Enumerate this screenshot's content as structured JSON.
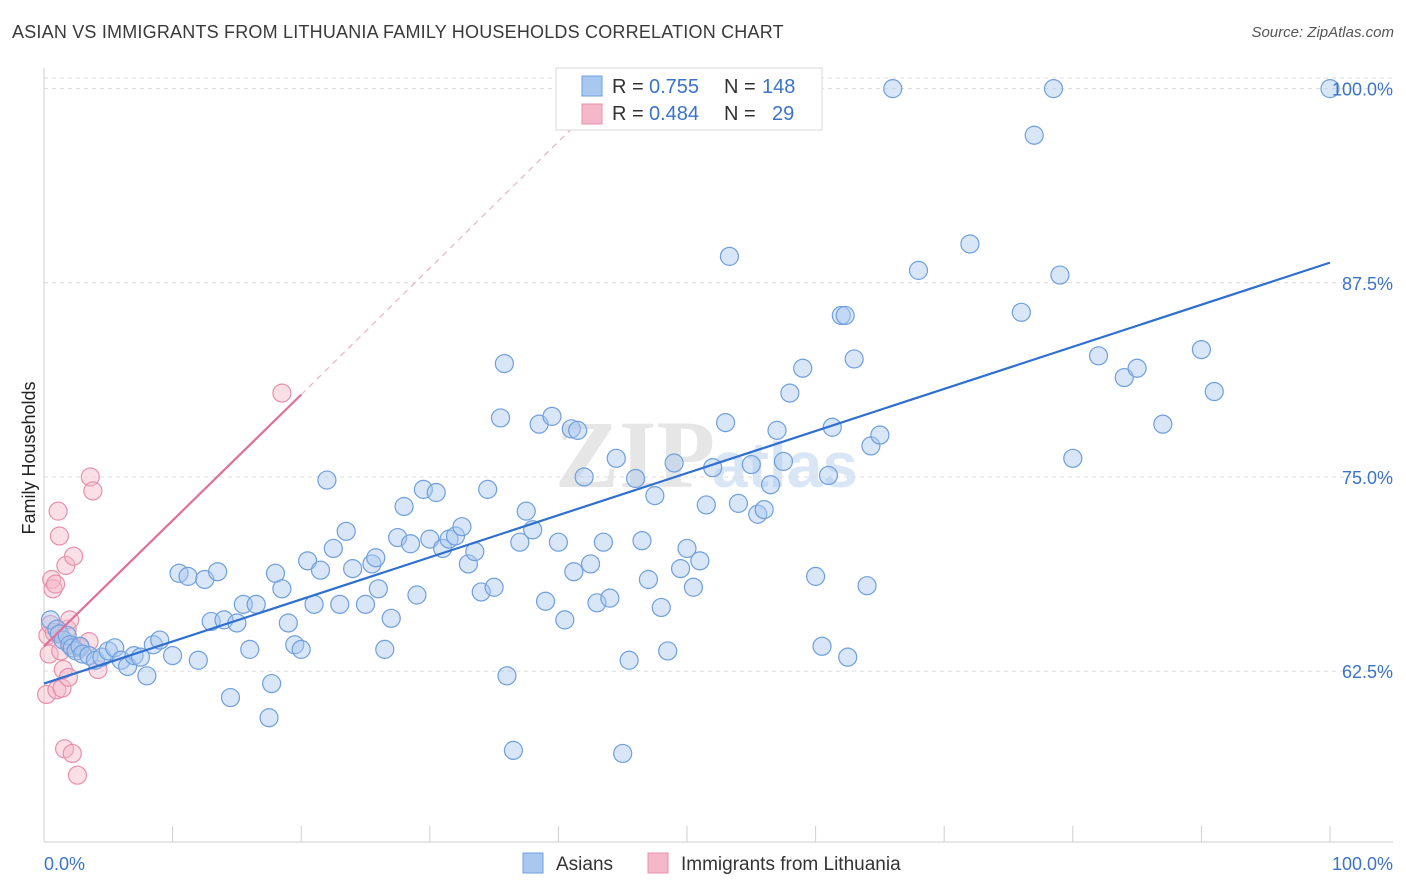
{
  "title": "ASIAN VS IMMIGRANTS FROM LITHUANIA FAMILY HOUSEHOLDS CORRELATION CHART",
  "source": "Source: ZipAtlas.com",
  "watermark": {
    "zip": "ZIP",
    "atlas": "atlas"
  },
  "legend": {
    "series1": {
      "r_label": "R =",
      "r_value": "0.755",
      "n_label": "N =",
      "n_value": "148"
    },
    "series2": {
      "r_label": "R =",
      "r_value": "0.484",
      "n_label": "N =",
      "n_value": "29"
    }
  },
  "bottom_legend": {
    "series1": "Asians",
    "series2": "Immigrants from Lithuania"
  },
  "colors": {
    "blue_fill": "#a9c8f0",
    "blue_stroke": "#6f9fdc",
    "blue_line": "#2f6fcf",
    "pink_fill": "#f5b8ca",
    "pink_stroke": "#e890ab",
    "pink_line": "#e07096",
    "tick_text": "#3b73c9",
    "grid": "#dcdcdc"
  },
  "chart_data": {
    "type": "scatter",
    "title": "ASIAN VS IMMIGRANTS FROM LITHUANIA FAMILY HOUSEHOLDS CORRELATION CHART",
    "xlabel": "",
    "ylabel": "Family Households",
    "xlim": [
      0,
      100
    ],
    "ylim": [
      51.5,
      101.2
    ],
    "x_tick_labels": [
      "0.0%",
      "100.0%"
    ],
    "y_ticks": [
      62.5,
      75.0,
      87.5,
      100.0
    ],
    "y_tick_labels": [
      "62.5%",
      "75.0%",
      "87.5%",
      "100.0%"
    ],
    "grid": true,
    "series": [
      {
        "name": "Asians",
        "R": 0.755,
        "N": 148,
        "trend": {
          "x": [
            0,
            100
          ],
          "y": [
            61.7,
            88.8
          ]
        },
        "points": [
          [
            0.5,
            65.8
          ],
          [
            1.0,
            65.2
          ],
          [
            1.2,
            64.9
          ],
          [
            1.5,
            64.5
          ],
          [
            1.8,
            64.8
          ],
          [
            2.0,
            64.2
          ],
          [
            2.2,
            64.0
          ],
          [
            2.5,
            63.8
          ],
          [
            2.8,
            64.1
          ],
          [
            3.0,
            63.6
          ],
          [
            3.5,
            63.5
          ],
          [
            4.0,
            63.2
          ],
          [
            4.5,
            63.4
          ],
          [
            5.0,
            63.8
          ],
          [
            5.5,
            64.0
          ],
          [
            6.0,
            63.2
          ],
          [
            6.5,
            62.8
          ],
          [
            7.0,
            63.5
          ],
          [
            7.5,
            63.4
          ],
          [
            8.0,
            62.2
          ],
          [
            8.5,
            64.2
          ],
          [
            9.0,
            64.5
          ],
          [
            10.0,
            63.5
          ],
          [
            10.5,
            68.8
          ],
          [
            11.2,
            68.6
          ],
          [
            12.0,
            63.2
          ],
          [
            12.5,
            68.4
          ],
          [
            13.0,
            65.7
          ],
          [
            13.5,
            68.9
          ],
          [
            14.0,
            65.8
          ],
          [
            14.5,
            60.8
          ],
          [
            15.0,
            65.6
          ],
          [
            15.5,
            66.8
          ],
          [
            16.0,
            63.9
          ],
          [
            16.5,
            66.8
          ],
          [
            17.5,
            59.5
          ],
          [
            17.7,
            61.7
          ],
          [
            18.0,
            68.8
          ],
          [
            18.5,
            67.8
          ],
          [
            19.0,
            65.6
          ],
          [
            19.5,
            64.2
          ],
          [
            20.0,
            63.9
          ],
          [
            20.5,
            69.6
          ],
          [
            21.0,
            66.8
          ],
          [
            21.5,
            69.0
          ],
          [
            22.0,
            74.8
          ],
          [
            22.5,
            70.4
          ],
          [
            23.0,
            66.8
          ],
          [
            23.5,
            71.5
          ],
          [
            24.0,
            69.1
          ],
          [
            25.0,
            66.8
          ],
          [
            25.5,
            69.4
          ],
          [
            25.8,
            69.8
          ],
          [
            26.0,
            67.8
          ],
          [
            26.5,
            63.9
          ],
          [
            27.0,
            65.9
          ],
          [
            27.5,
            71.1
          ],
          [
            28.0,
            73.1
          ],
          [
            28.5,
            70.7
          ],
          [
            29.0,
            67.4
          ],
          [
            29.5,
            74.2
          ],
          [
            30.0,
            71.0
          ],
          [
            30.5,
            74.0
          ],
          [
            31.0,
            70.4
          ],
          [
            31.5,
            71.0
          ],
          [
            32.0,
            71.2
          ],
          [
            32.5,
            71.8
          ],
          [
            33.0,
            69.4
          ],
          [
            33.5,
            70.2
          ],
          [
            34.0,
            67.6
          ],
          [
            34.5,
            74.2
          ],
          [
            35.0,
            67.9
          ],
          [
            35.5,
            78.8
          ],
          [
            35.8,
            82.3
          ],
          [
            36.0,
            62.2
          ],
          [
            36.5,
            57.4
          ],
          [
            37.0,
            70.8
          ],
          [
            37.5,
            72.8
          ],
          [
            38.0,
            71.6
          ],
          [
            38.5,
            78.4
          ],
          [
            39.0,
            67.0
          ],
          [
            39.5,
            78.9
          ],
          [
            40.0,
            70.8
          ],
          [
            40.5,
            65.8
          ],
          [
            41.0,
            78.1
          ],
          [
            41.2,
            68.9
          ],
          [
            41.5,
            78.0
          ],
          [
            42.0,
            75.0
          ],
          [
            42.5,
            69.4
          ],
          [
            43.0,
            66.9
          ],
          [
            43.5,
            70.8
          ],
          [
            44.0,
            67.2
          ],
          [
            44.5,
            76.2
          ],
          [
            45.0,
            57.2
          ],
          [
            45.5,
            63.2
          ],
          [
            46.0,
            74.9
          ],
          [
            46.5,
            70.9
          ],
          [
            47.0,
            68.4
          ],
          [
            47.5,
            73.8
          ],
          [
            48.0,
            66.6
          ],
          [
            48.5,
            63.8
          ],
          [
            49.0,
            75.9
          ],
          [
            49.5,
            69.1
          ],
          [
            50.0,
            70.4
          ],
          [
            50.5,
            67.9
          ],
          [
            51.0,
            69.6
          ],
          [
            51.5,
            73.2
          ],
          [
            52.0,
            75.6
          ],
          [
            53.0,
            78.5
          ],
          [
            53.3,
            89.2
          ],
          [
            54.0,
            73.3
          ],
          [
            55.0,
            75.8
          ],
          [
            55.5,
            72.6
          ],
          [
            56.0,
            72.9
          ],
          [
            56.5,
            74.5
          ],
          [
            57.0,
            78.0
          ],
          [
            57.5,
            76.0
          ],
          [
            58.0,
            80.4
          ],
          [
            59.0,
            82.0
          ],
          [
            60.0,
            68.6
          ],
          [
            60.5,
            64.1
          ],
          [
            61.0,
            75.1
          ],
          [
            61.3,
            78.2
          ],
          [
            62.0,
            85.4
          ],
          [
            62.3,
            85.4
          ],
          [
            62.5,
            63.4
          ],
          [
            63.0,
            82.6
          ],
          [
            64.0,
            68.0
          ],
          [
            64.3,
            77.0
          ],
          [
            65.0,
            77.7
          ],
          [
            66.0,
            100.0
          ],
          [
            68.0,
            88.3
          ],
          [
            72.0,
            90.0
          ],
          [
            76.0,
            85.6
          ],
          [
            77.0,
            97.0
          ],
          [
            78.5,
            100.0
          ],
          [
            79.0,
            88.0
          ],
          [
            80.0,
            76.2
          ],
          [
            82.0,
            82.8
          ],
          [
            84.0,
            81.4
          ],
          [
            85.0,
            82.0
          ],
          [
            87.0,
            78.4
          ],
          [
            90.0,
            83.2
          ],
          [
            91.0,
            80.5
          ],
          [
            100.0,
            100.0
          ]
        ]
      },
      {
        "name": "Immigrants from Lithuania",
        "R": 0.484,
        "N": 29,
        "trend": {
          "x": [
            0,
            20
          ],
          "y": [
            64.1,
            80.3
          ]
        },
        "trend_extension": {
          "x": [
            20,
            41
          ],
          "y": [
            80.3,
            97.4
          ]
        },
        "points": [
          [
            0.2,
            61.0
          ],
          [
            0.3,
            64.8
          ],
          [
            0.4,
            63.6
          ],
          [
            0.5,
            65.5
          ],
          [
            0.6,
            68.4
          ],
          [
            0.7,
            67.8
          ],
          [
            0.8,
            65.0
          ],
          [
            0.9,
            68.1
          ],
          [
            1.0,
            61.3
          ],
          [
            1.1,
            72.8
          ],
          [
            1.2,
            71.2
          ],
          [
            1.3,
            63.8
          ],
          [
            1.4,
            61.4
          ],
          [
            1.5,
            62.6
          ],
          [
            1.6,
            57.5
          ],
          [
            1.7,
            69.3
          ],
          [
            1.8,
            65.2
          ],
          [
            1.9,
            62.1
          ],
          [
            2.0,
            65.8
          ],
          [
            2.1,
            64.2
          ],
          [
            2.2,
            57.2
          ],
          [
            2.3,
            69.9
          ],
          [
            2.6,
            55.8
          ],
          [
            2.8,
            64.0
          ],
          [
            3.5,
            64.4
          ],
          [
            3.6,
            75.0
          ],
          [
            3.8,
            74.1
          ],
          [
            4.2,
            62.6
          ],
          [
            18.5,
            80.4
          ]
        ]
      }
    ]
  }
}
